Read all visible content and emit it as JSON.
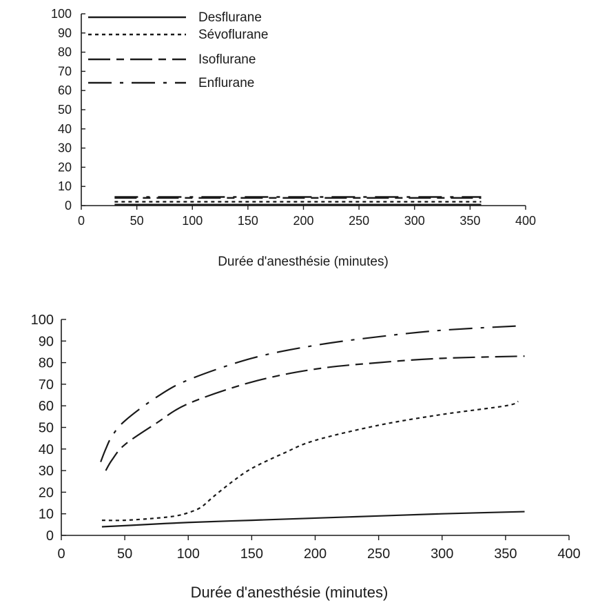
{
  "chart_data": [
    {
      "type": "line",
      "xlabel": "Durée d'anesthésie (minutes)",
      "ylabel": "",
      "xlim": [
        0,
        400
      ],
      "ylim": [
        0,
        100
      ],
      "xticks": [
        0,
        50,
        100,
        150,
        200,
        250,
        300,
        350,
        400
      ],
      "yticks": [
        0,
        10,
        20,
        30,
        40,
        50,
        60,
        70,
        80,
        90,
        100
      ],
      "grid": false,
      "legend_position": "top-left",
      "series": [
        {
          "name": "Desflurane",
          "style": "solid",
          "x": [
            30,
            360
          ],
          "y": [
            0.5,
            0.5
          ]
        },
        {
          "name": "Sévoflurane",
          "style": "short-dash",
          "x": [
            30,
            360
          ],
          "y": [
            2,
            2
          ]
        },
        {
          "name": "Isoflurane",
          "style": "long-dash-short-dash",
          "x": [
            30,
            360
          ],
          "y": [
            4,
            4
          ]
        },
        {
          "name": "Enflurane",
          "style": "long-dash-dot",
          "x": [
            30,
            360
          ],
          "y": [
            4.5,
            4.5
          ]
        }
      ]
    },
    {
      "type": "line",
      "xlabel": "Durée d'anesthésie (minutes)",
      "ylabel": "",
      "xlim": [
        0,
        400
      ],
      "ylim": [
        0,
        100
      ],
      "xticks": [
        0,
        50,
        100,
        150,
        200,
        250,
        300,
        350,
        400
      ],
      "yticks": [
        0,
        10,
        20,
        30,
        40,
        50,
        60,
        70,
        80,
        90,
        100
      ],
      "grid": false,
      "series": [
        {
          "style": "solid",
          "x": [
            32,
            50,
            100,
            150,
            200,
            250,
            300,
            365
          ],
          "y": [
            4,
            4.5,
            6,
            7,
            8,
            9,
            10,
            11
          ]
        },
        {
          "style": "short-dash",
          "x": [
            32,
            50,
            75,
            90,
            100,
            110,
            120,
            135,
            150,
            175,
            200,
            250,
            300,
            350,
            360
          ],
          "y": [
            7,
            7,
            8,
            9,
            10.5,
            13,
            18,
            25,
            31,
            38,
            44,
            51,
            56,
            60,
            62
          ]
        },
        {
          "style": "long-dash-short-dash",
          "x": [
            35,
            40,
            50,
            75,
            100,
            150,
            200,
            250,
            300,
            365
          ],
          "y": [
            30,
            35,
            42,
            52,
            61,
            71,
            77,
            80,
            82,
            83
          ]
        },
        {
          "style": "long-dash-dot",
          "x": [
            31,
            35,
            40,
            50,
            75,
            100,
            150,
            200,
            250,
            300,
            360
          ],
          "y": [
            34,
            40,
            46,
            53,
            64,
            72,
            82,
            88,
            92,
            95,
            97
          ]
        }
      ]
    }
  ]
}
